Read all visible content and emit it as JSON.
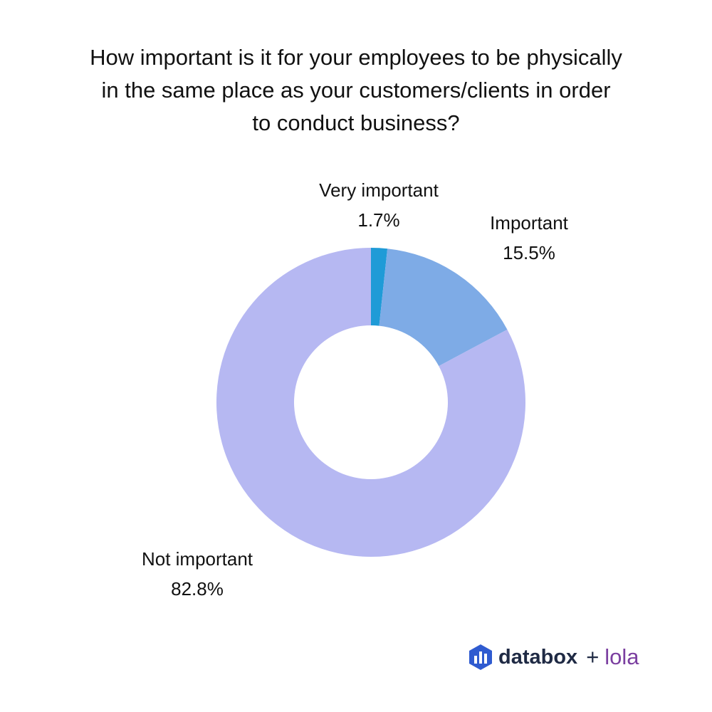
{
  "title_lines": [
    "How important is it for your employees to be physically",
    "in the same place as your customers/clients in order",
    "to conduct business?"
  ],
  "chart_data": {
    "type": "pie",
    "title": "How important is it for your employees to be physically in the same place as your customers/clients in order to conduct business?",
    "slices": [
      {
        "label": "Very important",
        "value": 1.7,
        "value_label": "1.7%",
        "color": "#1f9bd7"
      },
      {
        "label": "Important",
        "value": 15.5,
        "value_label": "15.5%",
        "color": "#7eabe6"
      },
      {
        "label": "Not important",
        "value": 82.8,
        "value_label": "82.8%",
        "color": "#b6b8f2"
      }
    ],
    "donut": true
  },
  "brand": {
    "name": "databox",
    "plus": "+",
    "partner": "lola",
    "icon": "databox-logo-icon",
    "colors": {
      "databox": "#1f2a44",
      "lola": "#7b3fa0"
    }
  }
}
